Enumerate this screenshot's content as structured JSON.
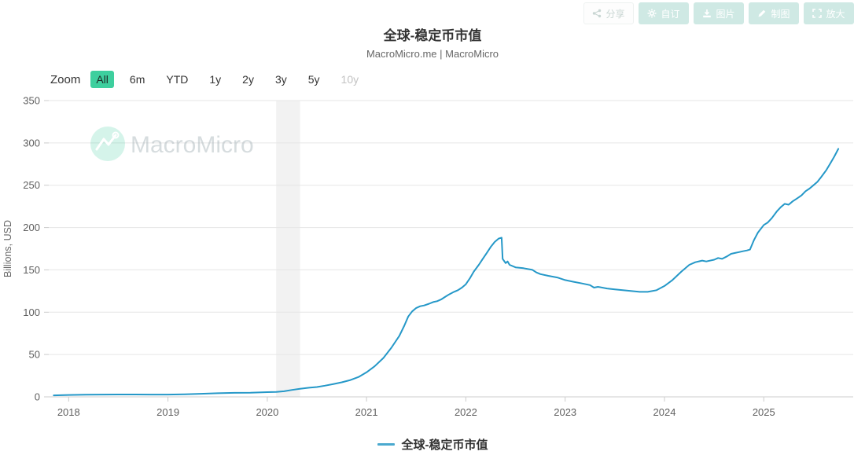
{
  "header": {
    "title": "全球-稳定币市值",
    "subtitle": "MacroMicro.me | MacroMicro"
  },
  "toolbar": {
    "buttons": [
      {
        "label": "分享",
        "icon": "share-icon"
      },
      {
        "label": "自订",
        "icon": "gear-icon"
      },
      {
        "label": "图片",
        "icon": "image-download-icon"
      },
      {
        "label": "制图",
        "icon": "pencil-icon"
      },
      {
        "label": "放大",
        "icon": "expand-icon"
      }
    ]
  },
  "zoom_bar": {
    "label": "Zoom",
    "buttons": [
      {
        "label": "All",
        "state": "selected"
      },
      {
        "label": "6m",
        "state": "normal"
      },
      {
        "label": "YTD",
        "state": "normal"
      },
      {
        "label": "1y",
        "state": "normal"
      },
      {
        "label": "2y",
        "state": "normal"
      },
      {
        "label": "3y",
        "state": "normal"
      },
      {
        "label": "5y",
        "state": "normal"
      },
      {
        "label": "10y",
        "state": "disabled"
      }
    ]
  },
  "watermark": {
    "text": "MacroMicro"
  },
  "legend": {
    "label": "全球-稳定币市值"
  },
  "colors": {
    "accent_teal": "#3ecf9e",
    "toolbar_teal": "#cfe9e4",
    "line": "#2598c8",
    "legend_marker": "#4aa9cf",
    "gridline": "#e6e6e6",
    "axis": "#cccccc",
    "tick_label": "#606060",
    "band": "#f2f2f2"
  },
  "chart_data": {
    "type": "line",
    "title": "全球-稳定币市值",
    "subtitle": "MacroMicro.me | MacroMicro",
    "xlabel": "",
    "ylabel": "Billions, USD",
    "ylim": [
      0,
      350
    ],
    "y_ticks": [
      0,
      50,
      100,
      150,
      200,
      250,
      300,
      350
    ],
    "x_ticks": [
      2018,
      2019,
      2020,
      2021,
      2022,
      2023,
      2024,
      2025
    ],
    "x_range": [
      2017.8,
      2025.9
    ],
    "grid": "horizontal-only",
    "legend_position": "bottom-center",
    "recession_band": {
      "x0": 2020.09,
      "x1": 2020.33
    },
    "series": [
      {
        "name": "全球-稳定币市值",
        "color": "#2598c8",
        "points": [
          [
            2017.85,
            1.8
          ],
          [
            2018.0,
            2.2
          ],
          [
            2018.17,
            2.5
          ],
          [
            2018.33,
            2.7
          ],
          [
            2018.5,
            2.8
          ],
          [
            2018.67,
            2.8
          ],
          [
            2018.83,
            2.7
          ],
          [
            2019.0,
            2.7
          ],
          [
            2019.17,
            3.1
          ],
          [
            2019.33,
            3.6
          ],
          [
            2019.5,
            4.3
          ],
          [
            2019.67,
            4.7
          ],
          [
            2019.83,
            4.9
          ],
          [
            2020.0,
            5.6
          ],
          [
            2020.09,
            5.8
          ],
          [
            2020.17,
            6.6
          ],
          [
            2020.25,
            8.2
          ],
          [
            2020.33,
            9.6
          ],
          [
            2020.42,
            10.8
          ],
          [
            2020.5,
            11.6
          ],
          [
            2020.58,
            13.2
          ],
          [
            2020.67,
            15.2
          ],
          [
            2020.75,
            17.2
          ],
          [
            2020.83,
            19.6
          ],
          [
            2020.92,
            23.5
          ],
          [
            2021.0,
            29
          ],
          [
            2021.08,
            36
          ],
          [
            2021.17,
            46
          ],
          [
            2021.25,
            58
          ],
          [
            2021.33,
            72
          ],
          [
            2021.38,
            84
          ],
          [
            2021.42,
            95
          ],
          [
            2021.46,
            101
          ],
          [
            2021.5,
            105
          ],
          [
            2021.54,
            107
          ],
          [
            2021.58,
            108
          ],
          [
            2021.63,
            110
          ],
          [
            2021.67,
            112
          ],
          [
            2021.71,
            113
          ],
          [
            2021.75,
            115
          ],
          [
            2021.79,
            118
          ],
          [
            2021.83,
            121
          ],
          [
            2021.88,
            124
          ],
          [
            2021.92,
            126
          ],
          [
            2021.96,
            129
          ],
          [
            2022.0,
            133
          ],
          [
            2022.04,
            140
          ],
          [
            2022.08,
            148
          ],
          [
            2022.13,
            156
          ],
          [
            2022.17,
            163
          ],
          [
            2022.21,
            170
          ],
          [
            2022.25,
            177
          ],
          [
            2022.29,
            183
          ],
          [
            2022.33,
            187
          ],
          [
            2022.36,
            188
          ],
          [
            2022.37,
            163
          ],
          [
            2022.4,
            158
          ],
          [
            2022.42,
            160
          ],
          [
            2022.44,
            156
          ],
          [
            2022.5,
            153
          ],
          [
            2022.58,
            152
          ],
          [
            2022.67,
            150
          ],
          [
            2022.71,
            147
          ],
          [
            2022.75,
            145
          ],
          [
            2022.83,
            143
          ],
          [
            2022.92,
            141
          ],
          [
            2023.0,
            138
          ],
          [
            2023.08,
            136
          ],
          [
            2023.17,
            134
          ],
          [
            2023.25,
            132
          ],
          [
            2023.29,
            129
          ],
          [
            2023.33,
            130
          ],
          [
            2023.42,
            128
          ],
          [
            2023.5,
            127
          ],
          [
            2023.58,
            126
          ],
          [
            2023.67,
            125
          ],
          [
            2023.75,
            124
          ],
          [
            2023.83,
            124
          ],
          [
            2023.92,
            126
          ],
          [
            2024.0,
            131
          ],
          [
            2024.08,
            138
          ],
          [
            2024.17,
            148
          ],
          [
            2024.25,
            156
          ],
          [
            2024.31,
            159
          ],
          [
            2024.38,
            161
          ],
          [
            2024.42,
            160
          ],
          [
            2024.5,
            162
          ],
          [
            2024.54,
            164
          ],
          [
            2024.58,
            163
          ],
          [
            2024.63,
            166
          ],
          [
            2024.67,
            169
          ],
          [
            2024.71,
            170
          ],
          [
            2024.75,
            171
          ],
          [
            2024.79,
            172
          ],
          [
            2024.83,
            173
          ],
          [
            2024.86,
            174
          ],
          [
            2024.9,
            185
          ],
          [
            2024.94,
            194
          ],
          [
            2025.0,
            203
          ],
          [
            2025.04,
            206
          ],
          [
            2025.08,
            211
          ],
          [
            2025.13,
            219
          ],
          [
            2025.17,
            224
          ],
          [
            2025.21,
            228
          ],
          [
            2025.25,
            227
          ],
          [
            2025.29,
            231
          ],
          [
            2025.33,
            234
          ],
          [
            2025.38,
            238
          ],
          [
            2025.42,
            243
          ],
          [
            2025.46,
            246
          ],
          [
            2025.5,
            250
          ],
          [
            2025.54,
            254
          ],
          [
            2025.58,
            260
          ],
          [
            2025.63,
            268
          ],
          [
            2025.67,
            276
          ],
          [
            2025.71,
            284
          ],
          [
            2025.75,
            293
          ]
        ]
      }
    ]
  }
}
